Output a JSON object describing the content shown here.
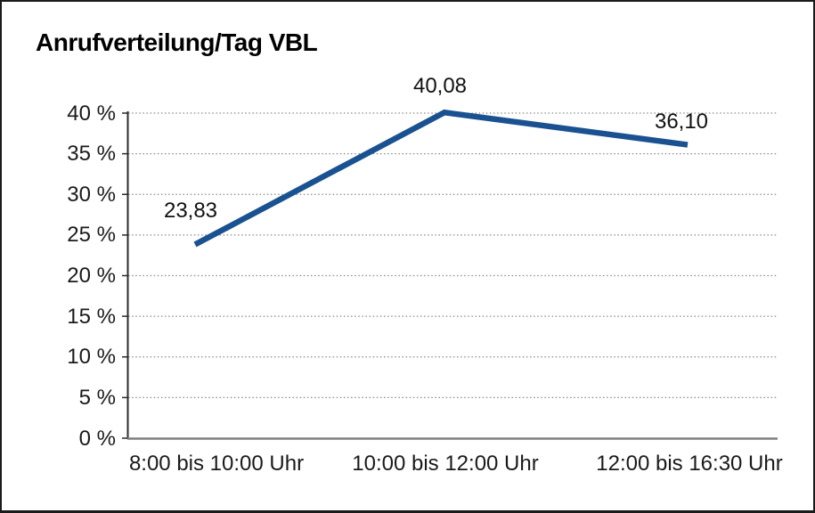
{
  "chart_data": {
    "type": "line",
    "title": "Anrufverteilung/Tag VBL",
    "categories": [
      "8:00 bis 10:00 Uhr",
      "10:00 bis 12:00 Uhr",
      "12:00 bis 16:30 Uhr"
    ],
    "values": [
      23.83,
      40.08,
      36.1
    ],
    "point_labels": [
      "23,83",
      "40,08",
      "36,10"
    ],
    "xlabel": "",
    "ylabel": "",
    "ylim": [
      0,
      40
    ],
    "y_tick_step": 5,
    "y_tick_labels": [
      "0 %",
      "5 %",
      "10 %",
      "15 %",
      "20 %",
      "25 %",
      "30 %",
      "35 %",
      "40 %"
    ],
    "y_tick_suffix": "%",
    "grid": "horizontal-dotted",
    "legend": "none",
    "series_name": "Anrufverteilung",
    "colors": {
      "line": "#1a5291",
      "gridline": "#8a8a8a",
      "y_axis": "#2b2b2b",
      "x_axis": "#7f7f7f",
      "text": "#1a1a1a",
      "border": "#1a1a1a",
      "background": "#ffffff"
    }
  }
}
